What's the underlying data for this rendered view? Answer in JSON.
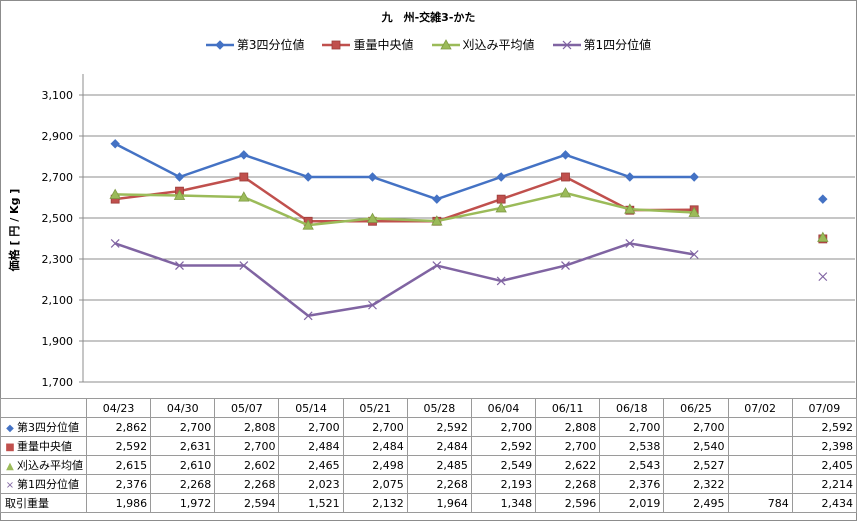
{
  "chart_data": {
    "type": "line",
    "title": "九　州-交雑3-かた",
    "ylabel": "価格 [ 円 / Kg ]",
    "categories": [
      "04/23",
      "04/30",
      "05/07",
      "05/14",
      "05/21",
      "05/28",
      "06/04",
      "06/11",
      "06/18",
      "06/25",
      "07/02",
      "07/09"
    ],
    "yticks": [
      "1,700",
      "1,900",
      "2,100",
      "2,300",
      "2,500",
      "2,700",
      "2,900",
      "3,100"
    ],
    "ylim": [
      1700,
      3100
    ],
    "grid": true,
    "legend": "top",
    "series": [
      {
        "name": "第3四分位値",
        "color": "#4472C4",
        "marker": "diamond",
        "values": [
          2862,
          2700,
          2808,
          2700,
          2700,
          2592,
          2700,
          2808,
          2700,
          2700,
          null,
          2592
        ]
      },
      {
        "name": "重量中央値",
        "color": "#C0504D",
        "marker": "square",
        "values": [
          2592,
          2631,
          2700,
          2484,
          2484,
          2484,
          2592,
          2700,
          2538,
          2540,
          null,
          2398
        ]
      },
      {
        "name": "刈込み平均値",
        "color": "#9BBB59",
        "marker": "triangle",
        "values": [
          2615,
          2610,
          2602,
          2465,
          2498,
          2485,
          2549,
          2622,
          2543,
          2527,
          null,
          2405
        ]
      },
      {
        "name": "第1四分位値",
        "color": "#8064A2",
        "marker": "x",
        "values": [
          2376,
          2268,
          2268,
          2023,
          2075,
          2268,
          2193,
          2268,
          2376,
          2322,
          null,
          2214
        ]
      }
    ],
    "table": {
      "rows": [
        {
          "label": "第3四分位値",
          "marker": "diamond",
          "color": "#4472C4",
          "cells": [
            "2,862",
            "2,700",
            "2,808",
            "2,700",
            "2,700",
            "2,592",
            "2,700",
            "2,808",
            "2,700",
            "2,700",
            "",
            "2,592"
          ]
        },
        {
          "label": "重量中央値",
          "marker": "square",
          "color": "#C0504D",
          "cells": [
            "2,592",
            "2,631",
            "2,700",
            "2,484",
            "2,484",
            "2,484",
            "2,592",
            "2,700",
            "2,538",
            "2,540",
            "",
            "2,398"
          ]
        },
        {
          "label": "刈込み平均値",
          "marker": "triangle",
          "color": "#9BBB59",
          "cells": [
            "2,615",
            "2,610",
            "2,602",
            "2,465",
            "2,498",
            "2,485",
            "2,549",
            "2,622",
            "2,543",
            "2,527",
            "",
            "2,405"
          ]
        },
        {
          "label": "第1四分位値",
          "marker": "x",
          "color": "#8064A2",
          "cells": [
            "2,376",
            "2,268",
            "2,268",
            "2,023",
            "2,075",
            "2,268",
            "2,193",
            "2,268",
            "2,376",
            "2,322",
            "",
            "2,214"
          ]
        },
        {
          "label": "取引重量",
          "marker": "none",
          "color": "#000000",
          "cells": [
            "1,986",
            "1,972",
            "2,594",
            "1,521",
            "2,132",
            "1,964",
            "1,348",
            "2,596",
            "2,019",
            "2,495",
            "784",
            "2,434"
          ]
        }
      ]
    }
  }
}
